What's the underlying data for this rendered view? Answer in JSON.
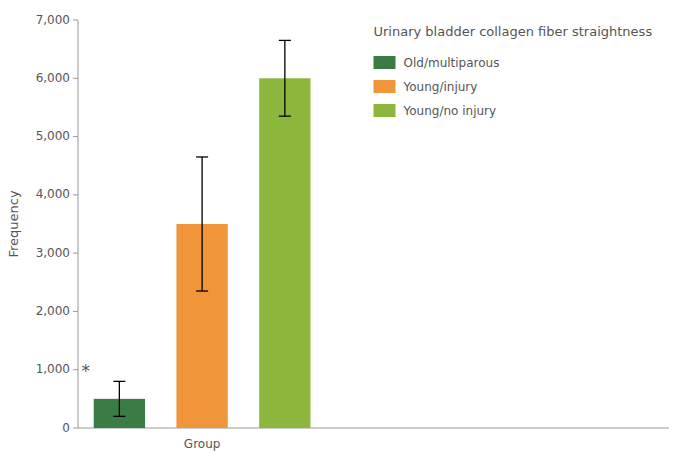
{
  "chart_data": {
    "type": "bar",
    "title": "Urinary bladder collagen fiber straightness",
    "xlabel": "Group",
    "ylabel": "Frequency",
    "categories": [
      "Old/multiparous",
      "Young/injury",
      "Young/no injury"
    ],
    "values": [
      500,
      3500,
      6000
    ],
    "errors": [
      300,
      1150,
      650
    ],
    "colors": [
      "#3a7d44",
      "#f0953a",
      "#8db63c"
    ],
    "ylim": [
      0,
      7000
    ],
    "yticks": [
      0,
      {
        "value": 1000,
        "label": "1,000"
      },
      {
        "value": 2000,
        "label": "2,000"
      },
      {
        "value": 3000,
        "label": "3,000"
      },
      {
        "value": 4000,
        "label": "4,000"
      },
      {
        "value": 5000,
        "label": "5,000"
      },
      {
        "value": 6000,
        "label": "6,000"
      },
      {
        "value": 7000,
        "label": "7,000"
      }
    ],
    "annotations": [
      {
        "text": "*",
        "x": "Old/multiparous",
        "y": 870
      }
    ],
    "legend": "upper right",
    "grid": false
  }
}
